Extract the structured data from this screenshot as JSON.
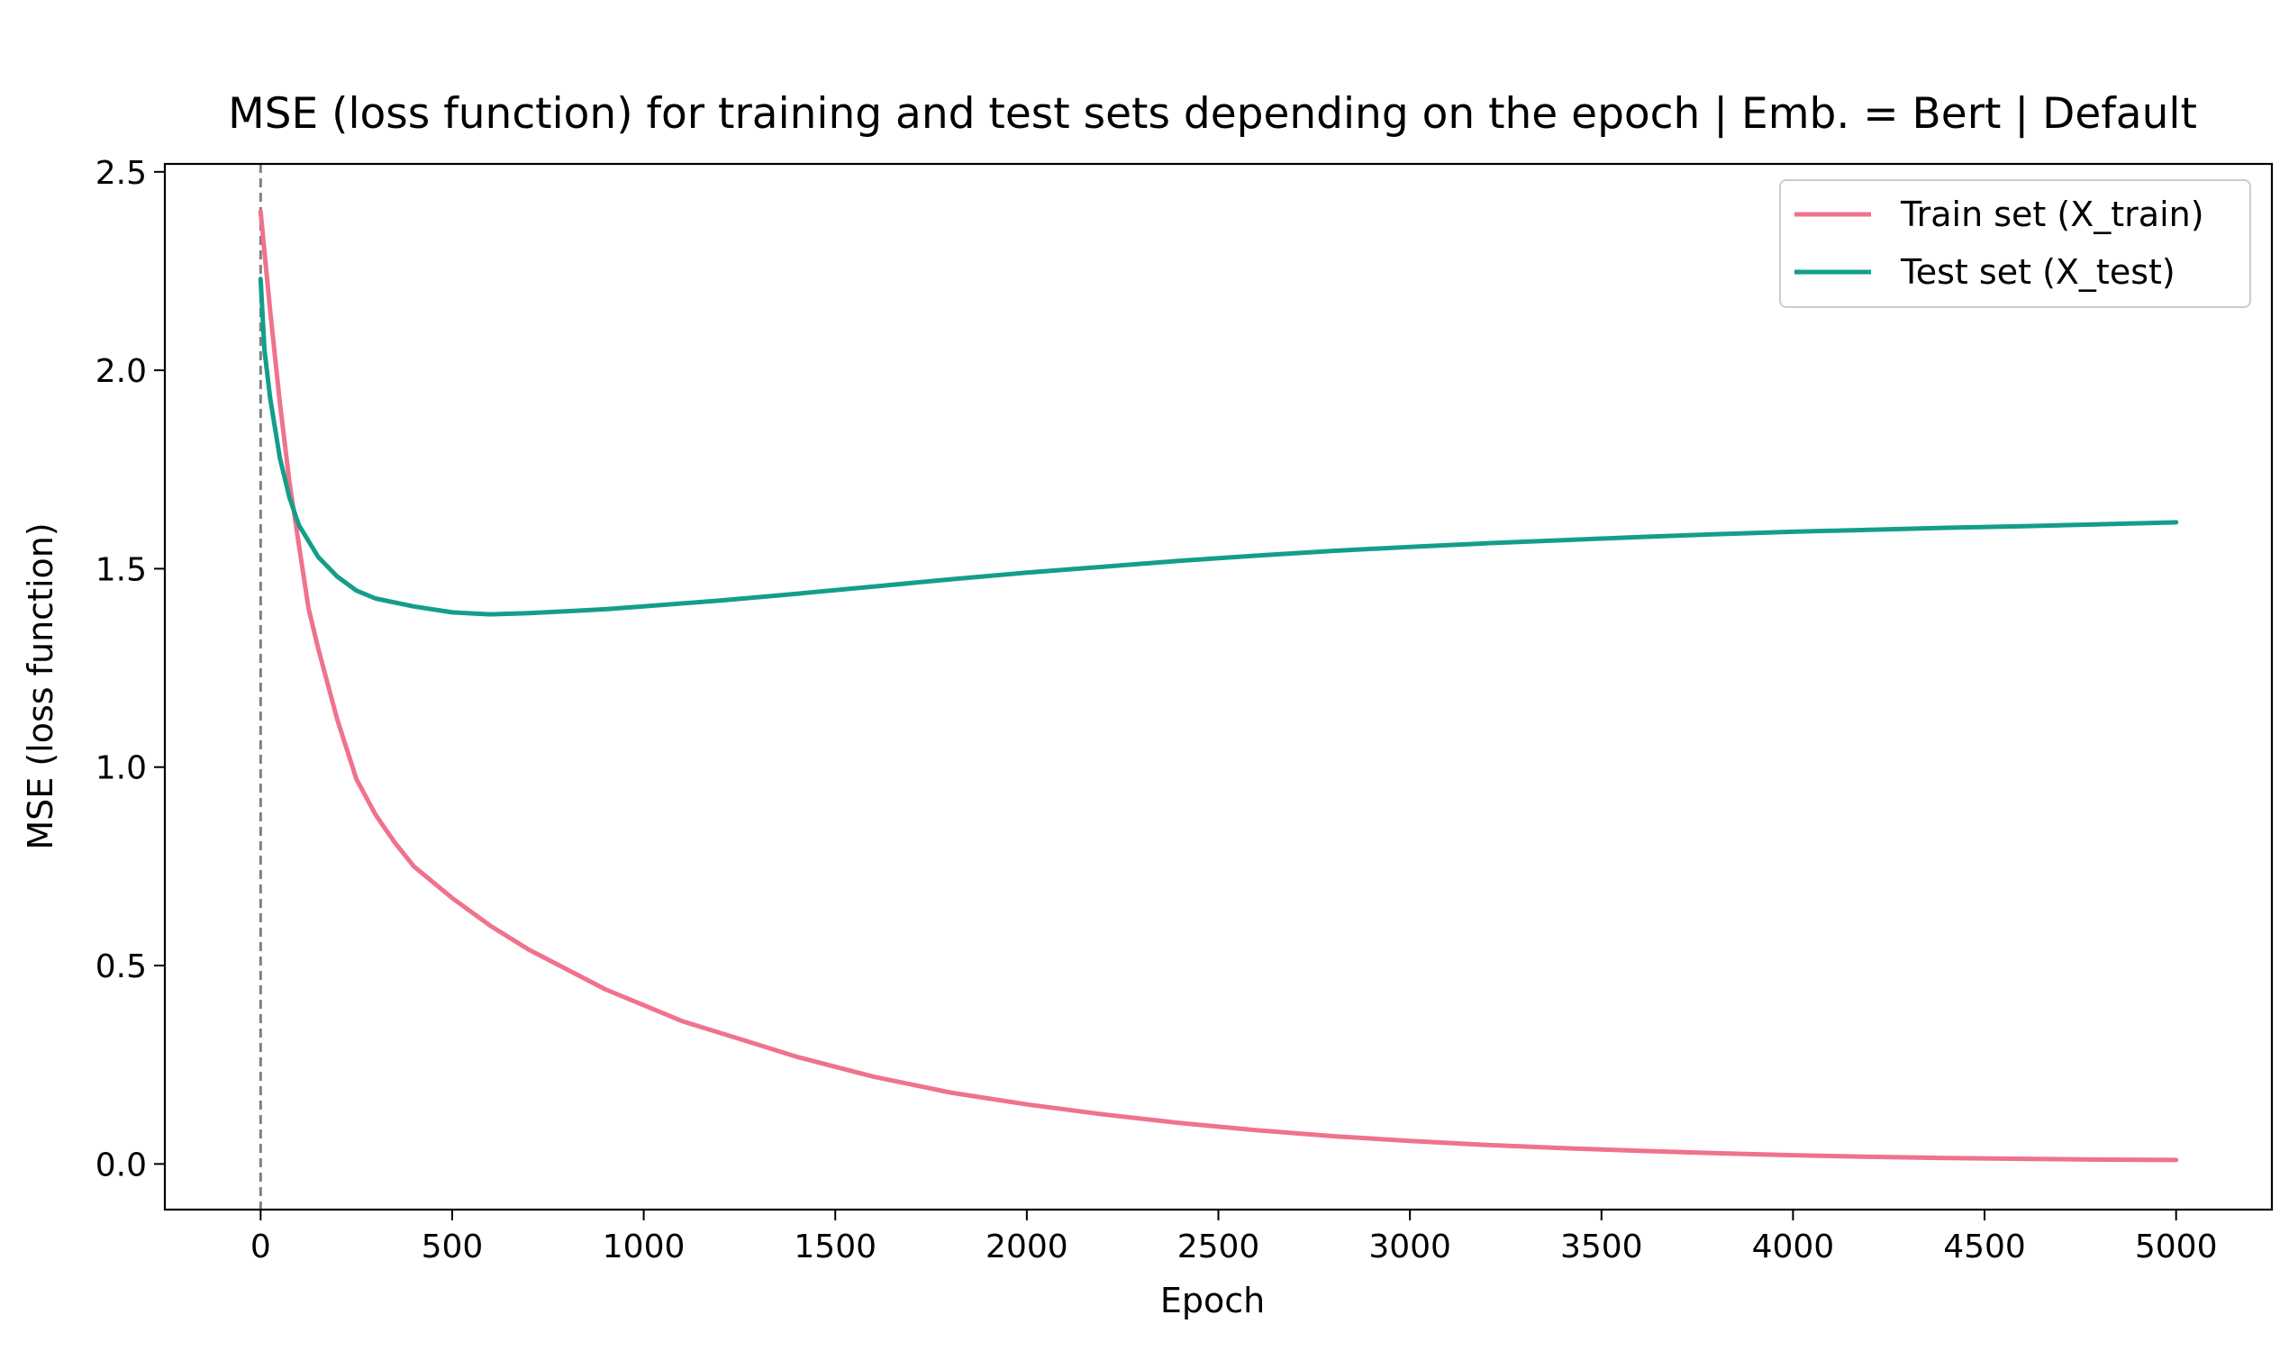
{
  "chart_data": {
    "type": "line",
    "title": "MSE (loss function) for training and test sets depending on the epoch | Emb. = Bert | Default",
    "xlabel": "Epoch",
    "ylabel": "MSE (loss function)",
    "xlim": [
      -250,
      5250
    ],
    "ylim": [
      -0.115,
      2.52
    ],
    "xticks": [
      0,
      500,
      1000,
      1500,
      2000,
      2500,
      3000,
      3500,
      4000,
      4500,
      5000
    ],
    "yticks": [
      0.0,
      0.5,
      1.0,
      1.5,
      2.0,
      2.5
    ],
    "xtick_labels": [
      "0",
      "500",
      "1000",
      "1500",
      "2000",
      "2500",
      "3000",
      "3500",
      "4000",
      "4500",
      "5000"
    ],
    "ytick_labels": [
      "0.0",
      "0.5",
      "1.0",
      "1.5",
      "2.0",
      "2.5"
    ],
    "vline": {
      "x": 0,
      "style": "dashed",
      "color": "#808080"
    },
    "grid": false,
    "legend_position": "top-right",
    "series": [
      {
        "name": "Train set (X_train)",
        "color": "#f0728c",
        "x": [
          0,
          25,
          50,
          75,
          100,
          125,
          150,
          200,
          250,
          300,
          350,
          400,
          500,
          600,
          700,
          800,
          900,
          1000,
          1100,
          1200,
          1300,
          1400,
          1500,
          1600,
          1700,
          1800,
          1900,
          2000,
          2200,
          2400,
          2600,
          2800,
          3000,
          3200,
          3400,
          3600,
          3800,
          4000,
          4200,
          4400,
          4600,
          4800,
          5000
        ],
        "values": [
          2.4,
          2.15,
          1.92,
          1.72,
          1.56,
          1.4,
          1.3,
          1.12,
          0.97,
          0.88,
          0.81,
          0.75,
          0.67,
          0.6,
          0.54,
          0.49,
          0.44,
          0.4,
          0.36,
          0.33,
          0.3,
          0.27,
          0.245,
          0.22,
          0.2,
          0.18,
          0.165,
          0.15,
          0.125,
          0.103,
          0.085,
          0.07,
          0.058,
          0.048,
          0.04,
          0.033,
          0.027,
          0.022,
          0.018,
          0.015,
          0.013,
          0.011,
          0.01
        ]
      },
      {
        "name": "Test set (X_test)",
        "color": "#149e8a",
        "x": [
          0,
          10,
          25,
          50,
          75,
          100,
          150,
          200,
          250,
          300,
          400,
          500,
          600,
          700,
          800,
          900,
          1000,
          1200,
          1400,
          1600,
          1800,
          2000,
          2200,
          2400,
          2600,
          2800,
          3000,
          3200,
          3400,
          3600,
          3800,
          4000,
          4200,
          4400,
          4600,
          4800,
          5000
        ],
        "values": [
          2.23,
          2.05,
          1.93,
          1.78,
          1.68,
          1.61,
          1.53,
          1.48,
          1.445,
          1.425,
          1.405,
          1.39,
          1.385,
          1.388,
          1.393,
          1.398,
          1.405,
          1.42,
          1.437,
          1.455,
          1.473,
          1.49,
          1.505,
          1.52,
          1.533,
          1.545,
          1.555,
          1.564,
          1.572,
          1.58,
          1.587,
          1.593,
          1.598,
          1.603,
          1.607,
          1.612,
          1.617
        ]
      }
    ]
  }
}
